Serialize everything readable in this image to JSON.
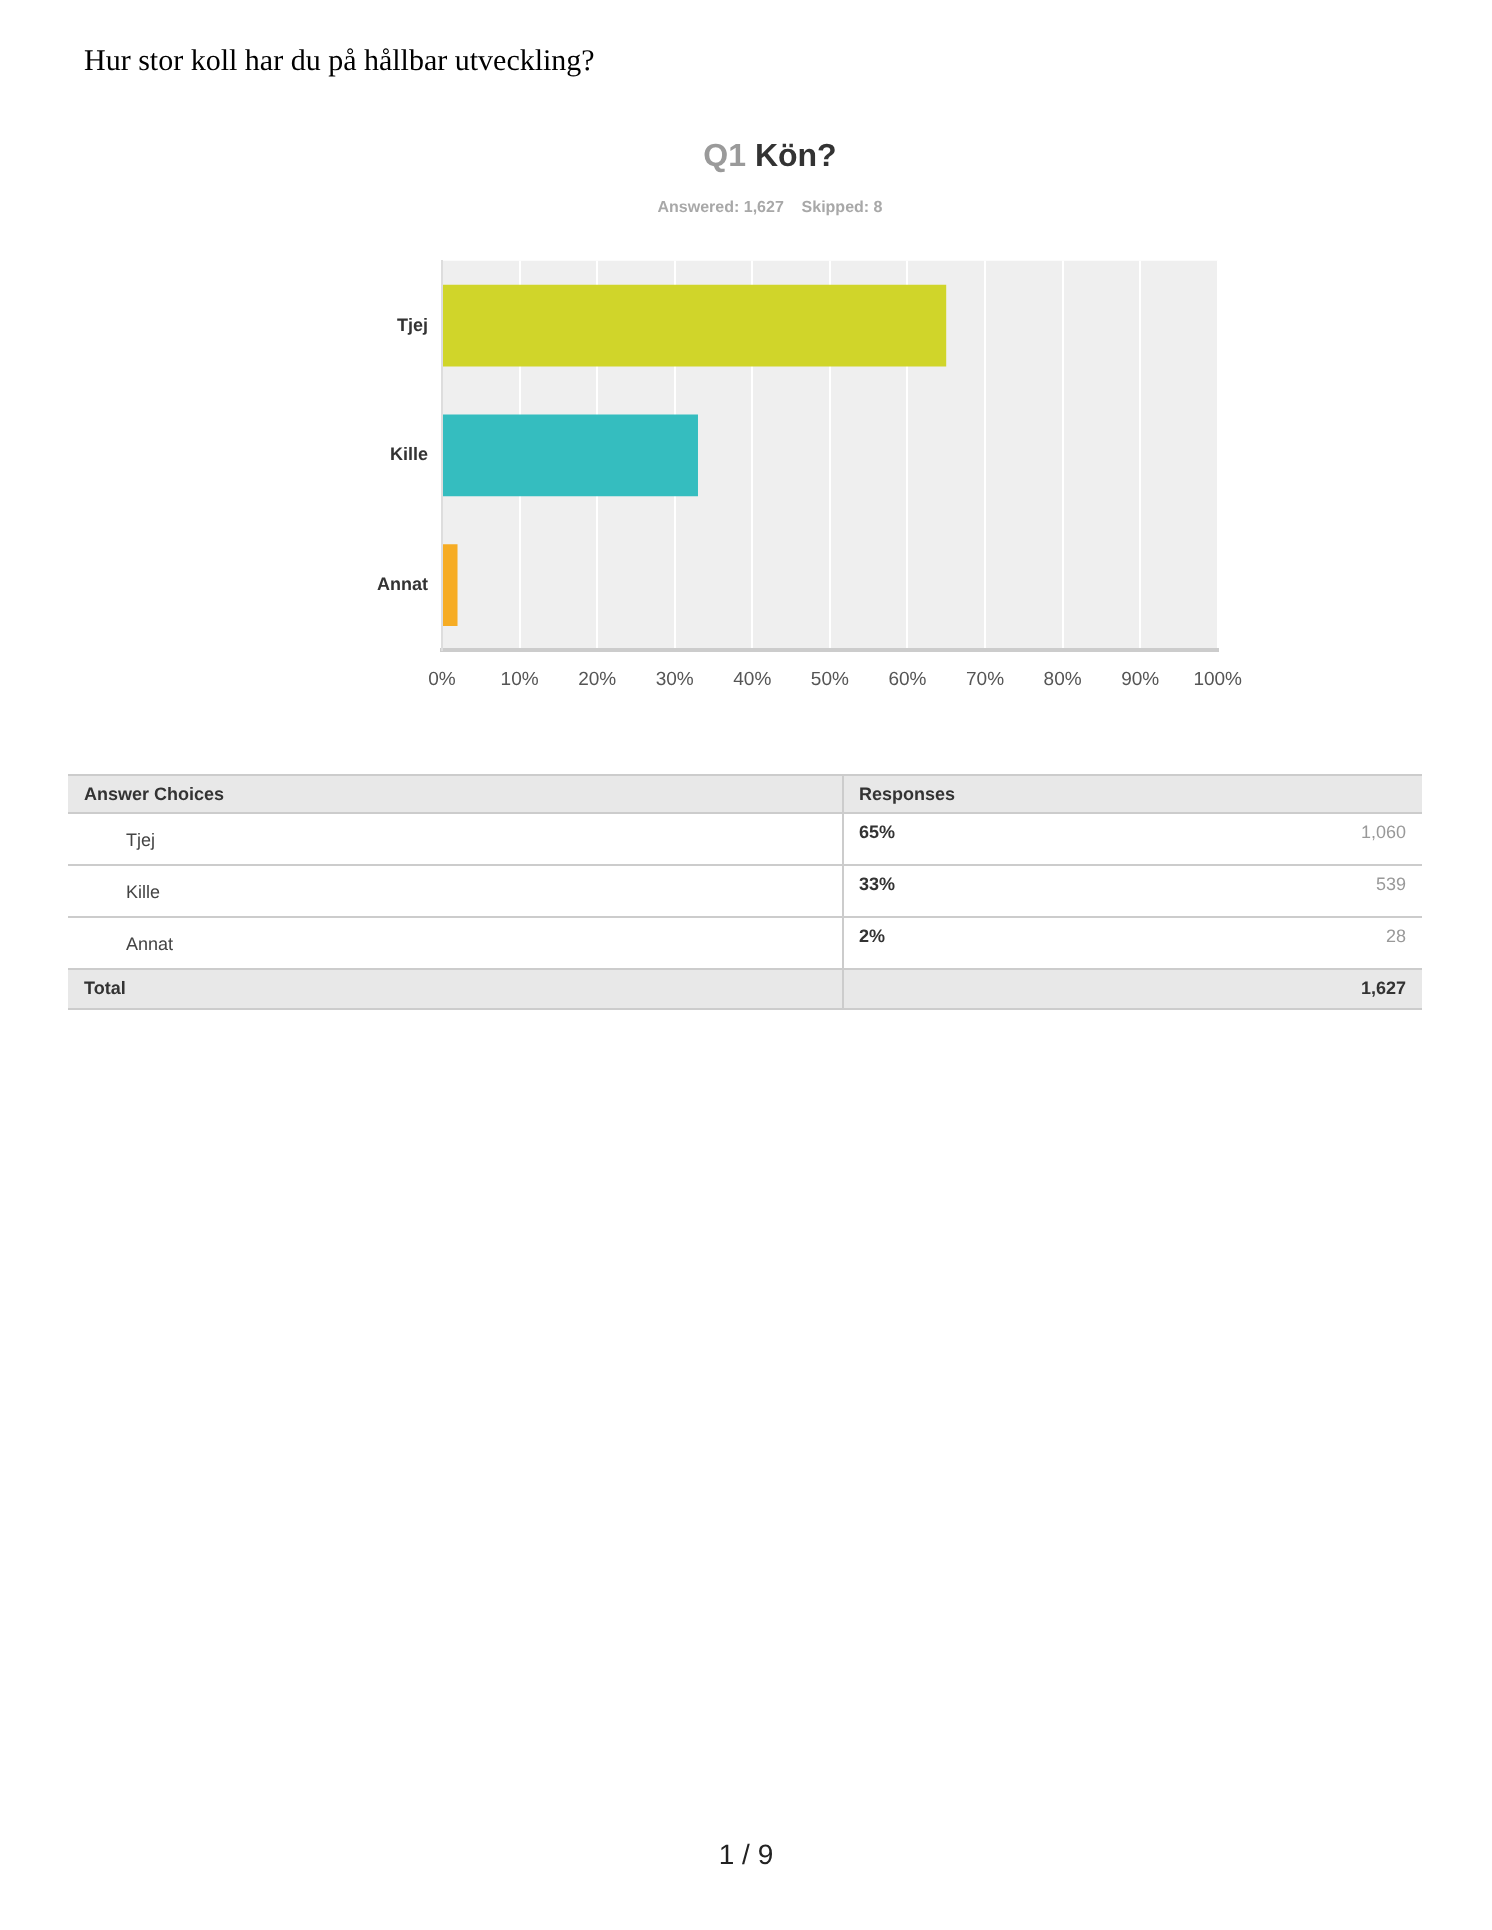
{
  "chart_data": {
    "type": "bar",
    "orientation": "horizontal",
    "title": "Q1 Kön?",
    "subtitle": "Answered: 1,627    Skipped: 8",
    "categories": [
      "Tjej",
      "Kille",
      "Annat"
    ],
    "values": [
      65,
      33,
      2
    ],
    "colors": [
      "#d0d52a",
      "#35bdbf",
      "#f6ac24"
    ],
    "xlim": [
      0,
      100
    ],
    "xticks": [
      {
        "value": 0,
        "label": "0%"
      },
      {
        "value": 10,
        "label": "10%"
      },
      {
        "value": 20,
        "label": "20%"
      },
      {
        "value": 30,
        "label": "30%"
      },
      {
        "value": 40,
        "label": "40%"
      },
      {
        "value": 50,
        "label": "50%"
      },
      {
        "value": 60,
        "label": "60%"
      },
      {
        "value": 70,
        "label": "70%"
      },
      {
        "value": 80,
        "label": "80%"
      },
      {
        "value": 90,
        "label": "90%"
      },
      {
        "value": 100,
        "label": "100%"
      }
    ],
    "grid": "x",
    "annotations": [
      "Hur stor koll har du på hållbar utveckling?",
      "Answer Choices",
      "Responses",
      "65%",
      "33%",
      "2%",
      "1,060",
      "539",
      "28",
      "Total",
      "1,627",
      "1 / 9"
    ]
  }
}
